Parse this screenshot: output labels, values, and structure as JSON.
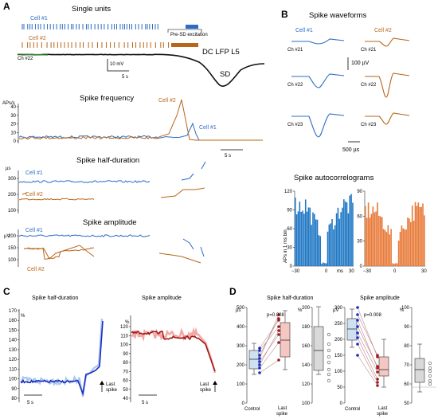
{
  "colors": {
    "cell1": "#2b6cc4",
    "cell2": "#b8661a",
    "lfp": "#111111",
    "green": "#2e8b2e",
    "bar_blue": "#1f77c4",
    "bar_orange": "#e87b3a",
    "dark_blue": "#1a2bc0",
    "dark_red": "#a01818",
    "box_blue": "#cfe0f2",
    "box_red": "#f4c7c3",
    "box_gray": "#d9d9d9"
  },
  "panel_a": {
    "letter": "A",
    "title_units": "Single units",
    "cell1": "Cell #1",
    "cell2": "Cell #2",
    "presd": "Pre-SD excitation",
    "ch": "Ch #22",
    "lfp": "DC LFP L5",
    "sd": "SD",
    "scale_mv": "10 mV",
    "scale_s": "5 s",
    "freq_title": "Spike frequency",
    "freq_unit": "APs/s",
    "freq_cell1": "Cell #1",
    "freq_cell2": "Cell #2",
    "freq_ticks": [
      "40",
      "30",
      "20",
      "10",
      "0"
    ],
    "freq_scale": "5 s",
    "hd_title": "Spike half-duration",
    "hd_unit": "µs",
    "hd_ticks": [
      "300",
      "200",
      "100"
    ],
    "hd_cell1": "Cell #1",
    "hd_cell2": "Cell #2",
    "amp_title": "Spike amplitude",
    "amp_unit": "µV",
    "amp_ticks": [
      "200",
      "150",
      "100"
    ],
    "amp_cell1": "Cell #1",
    "amp_cell2": "Cell #2"
  },
  "panel_b": {
    "letter": "B",
    "title": "Spike waveforms",
    "cell1": "Cell #1",
    "cell2": "Cell #2",
    "channels": [
      "Ch #21",
      "Ch #22",
      "Ch #23"
    ],
    "scale_uv": "100 µV",
    "scale_us": "500 µs",
    "auto_title": "Spike autocorrelograms",
    "auto_ylabel": "APs in 1 ms bin",
    "auto1_ticks": [
      "120",
      "90",
      "60",
      "30",
      "0"
    ],
    "auto2_ticks": [
      "90",
      "60",
      "30",
      "0"
    ],
    "auto_x": [
      "−30",
      "0",
      "30"
    ],
    "auto_x2": [
      "−30",
      "0",
      "30"
    ],
    "auto_ms": "ms"
  },
  "panel_c": {
    "letter": "C",
    "hd_title": "Spike half-duration",
    "hd_ticks": [
      "170",
      "160",
      "150",
      "140",
      "130",
      "120",
      "110",
      "100",
      "90",
      "80"
    ],
    "hd_unit": "%",
    "amp_title": "Spike amplitude",
    "amp_ticks": [
      "120",
      "110",
      "100",
      "90",
      "80",
      "70",
      "60",
      "50",
      "40"
    ],
    "amp_unit": "%",
    "scale": "5 s",
    "scale2": "5 s",
    "last1": "Last",
    "last2": "spike",
    "last1b": "Last",
    "last2b": "spike"
  },
  "panel_d": {
    "letter": "D",
    "hd_title": "Spike half-duration",
    "amp_title": "Spike amplitude",
    "hd_unit": "µs",
    "hd_pct": "%",
    "hd_ticks": [
      "500",
      "400",
      "300",
      "200",
      "100",
      "0"
    ],
    "hd_pct_ticks": [
      "200",
      "180",
      "160",
      "140",
      "120",
      "100"
    ],
    "amp_unit": "µV",
    "amp_pct": "%",
    "amp_ticks": [
      "300",
      "250",
      "200",
      "150",
      "100",
      "50",
      "0"
    ],
    "amp_pct_ticks": [
      "100",
      "90",
      "80",
      "70",
      "60",
      "50"
    ],
    "p_hd": "p=0.008",
    "p_amp": "p=0.008",
    "control": "Control",
    "last": "Last",
    "spike": "spike",
    "control2": "Control",
    "last2": "Last",
    "spike2": "spike"
  }
}
